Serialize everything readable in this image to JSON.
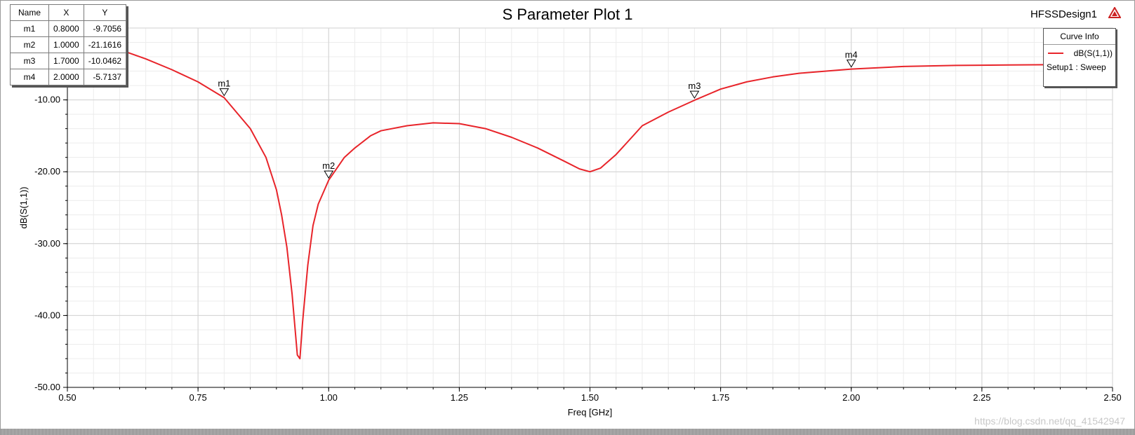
{
  "window": {
    "design_name": "HFSSDesign1"
  },
  "chart_data": {
    "type": "line",
    "title": "S Parameter Plot 1",
    "xlabel": "Freq [GHz]",
    "ylabel": "dB(S(1,1))",
    "xlim": [
      0.5,
      2.5
    ],
    "ylim": [
      -50,
      0
    ],
    "x_ticks": [
      "0.50",
      "0.75",
      "1.00",
      "1.25",
      "1.50",
      "1.75",
      "2.00",
      "2.25",
      "2.50"
    ],
    "y_ticks": [
      "-10.00",
      "-20.00",
      "-30.00",
      "-40.00",
      "-50.00"
    ],
    "grid": true,
    "legend_position": "top-right",
    "series": [
      {
        "name": "dB(S(1,1))",
        "color": "#e8242a",
        "x": [
          0.6,
          0.65,
          0.7,
          0.75,
          0.8,
          0.85,
          0.88,
          0.9,
          0.91,
          0.92,
          0.93,
          0.94,
          0.945,
          0.95,
          0.96,
          0.97,
          0.98,
          1.0,
          1.03,
          1.05,
          1.08,
          1.1,
          1.15,
          1.2,
          1.25,
          1.3,
          1.35,
          1.4,
          1.45,
          1.48,
          1.5,
          1.52,
          1.55,
          1.58,
          1.6,
          1.65,
          1.7,
          1.75,
          1.8,
          1.85,
          1.9,
          2.0,
          2.1,
          2.2,
          2.3,
          2.4
        ],
        "y": [
          -3.0,
          -4.3,
          -5.8,
          -7.5,
          -9.7,
          -14.0,
          -18.0,
          -22.5,
          -26.0,
          -30.5,
          -37.0,
          -45.5,
          -46.0,
          -41.0,
          -33.0,
          -27.5,
          -24.5,
          -21.16,
          -18.0,
          -16.7,
          -15.0,
          -14.3,
          -13.6,
          -13.2,
          -13.3,
          -14.0,
          -15.2,
          -16.7,
          -18.5,
          -19.6,
          -20.0,
          -19.5,
          -17.6,
          -15.2,
          -13.6,
          -11.7,
          -10.05,
          -8.5,
          -7.5,
          -6.8,
          -6.3,
          -5.71,
          -5.35,
          -5.2,
          -5.15,
          -5.1
        ]
      }
    ],
    "markers": [
      {
        "name": "m1",
        "x": "0.8000",
        "y": "-9.7056",
        "xv": 0.8,
        "yv": -9.7056
      },
      {
        "name": "m2",
        "x": "1.0000",
        "y": "-21.1616",
        "xv": 1.0,
        "yv": -21.1616
      },
      {
        "name": "m3",
        "x": "1.7000",
        "y": "-10.0462",
        "xv": 1.7,
        "yv": -10.0462
      },
      {
        "name": "m4",
        "x": "2.0000",
        "y": "-5.7137",
        "xv": 2.0,
        "yv": -5.7137
      }
    ],
    "marker_table_headers": [
      "Name",
      "X",
      "Y"
    ],
    "legend": {
      "title": "Curve Info",
      "sub": "Setup1 : Sweep"
    }
  },
  "watermark": "https://blog.csdn.net/qq_41542947"
}
